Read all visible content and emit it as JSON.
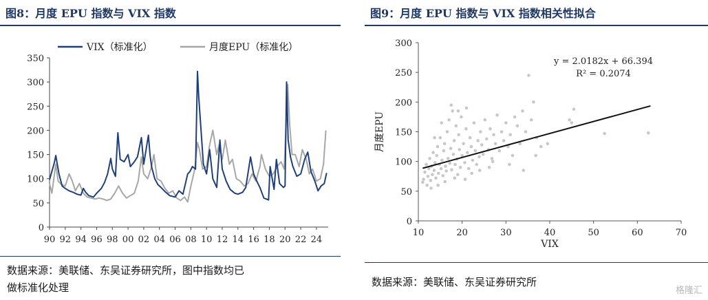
{
  "left": {
    "title": "图8：月度 EPU 指数与 VIX 指数",
    "source_line1": "数据来源：美联储、东吴证券研究所，图中指数均已",
    "source_line2": "做标准化处理"
  },
  "right": {
    "title": "图9：月度 EPU 指数与 VIX 指数相关性拟合",
    "source": "数据来源：美联储、东吴证券研究所"
  },
  "watermark": "格隆汇",
  "chart_data": [
    {
      "type": "line",
      "title": "",
      "xlabel": "",
      "ylabel": "",
      "ylim": [
        0,
        350
      ],
      "yticks": [
        0,
        50,
        100,
        150,
        200,
        250,
        300,
        350
      ],
      "xlim": [
        1990,
        2025.5
      ],
      "xtick_labels": [
        "90",
        "92",
        "94",
        "96",
        "98",
        "00",
        "02",
        "04",
        "06",
        "08",
        "10",
        "12",
        "14",
        "16",
        "18",
        "20",
        "22",
        "24"
      ],
      "legend": "top-left",
      "series": [
        {
          "name": "VIX（标准化）",
          "color": "#1f3f7a",
          "points": [
            [
              1990.0,
              98
            ],
            [
              1990.6,
              132
            ],
            [
              1990.8,
              148
            ],
            [
              1991.2,
              110
            ],
            [
              1991.6,
              85
            ],
            [
              1992.0,
              80
            ],
            [
              1992.5,
              75
            ],
            [
              1993.0,
              72
            ],
            [
              1993.5,
              68
            ],
            [
              1994.0,
              66
            ],
            [
              1994.3,
              80
            ],
            [
              1994.6,
              72
            ],
            [
              1995.0,
              65
            ],
            [
              1995.6,
              62
            ],
            [
              1996.0,
              70
            ],
            [
              1996.6,
              80
            ],
            [
              1997.0,
              92
            ],
            [
              1997.4,
              110
            ],
            [
              1997.8,
              142
            ],
            [
              1998.0,
              120
            ],
            [
              1998.4,
              105
            ],
            [
              1998.7,
              195
            ],
            [
              1999.0,
              140
            ],
            [
              1999.5,
              135
            ],
            [
              2000.0,
              150
            ],
            [
              2000.3,
              125
            ],
            [
              2000.8,
              135
            ],
            [
              2001.2,
              145
            ],
            [
              2001.7,
              185
            ],
            [
              2002.0,
              130
            ],
            [
              2002.6,
              190
            ],
            [
              2002.8,
              150
            ],
            [
              2003.0,
              125
            ],
            [
              2003.4,
              100
            ],
            [
              2003.8,
              88
            ],
            [
              2004.2,
              82
            ],
            [
              2004.8,
              72
            ],
            [
              2005.3,
              65
            ],
            [
              2006.0,
              62
            ],
            [
              2006.5,
              75
            ],
            [
              2007.0,
              68
            ],
            [
              2007.6,
              110
            ],
            [
              2007.9,
              115
            ],
            [
              2008.2,
              125
            ],
            [
              2008.6,
              120
            ],
            [
              2008.85,
              322
            ],
            [
              2009.0,
              270
            ],
            [
              2009.3,
              200
            ],
            [
              2009.6,
              130
            ],
            [
              2010.0,
              110
            ],
            [
              2010.4,
              160
            ],
            [
              2010.8,
              100
            ],
            [
              2011.3,
              82
            ],
            [
              2011.7,
              180
            ],
            [
              2012.0,
              120
            ],
            [
              2012.5,
              95
            ],
            [
              2013.0,
              78
            ],
            [
              2013.6,
              70
            ],
            [
              2014.0,
              68
            ],
            [
              2014.6,
              72
            ],
            [
              2015.0,
              82
            ],
            [
              2015.6,
              145
            ],
            [
              2016.0,
              110
            ],
            [
              2016.4,
              95
            ],
            [
              2016.8,
              82
            ],
            [
              2017.3,
              60
            ],
            [
              2017.9,
              56
            ],
            [
              2018.1,
              125
            ],
            [
              2018.6,
              78
            ],
            [
              2018.9,
              140
            ],
            [
              2019.3,
              90
            ],
            [
              2019.8,
              82
            ],
            [
              2020.0,
              85
            ],
            [
              2020.2,
              300
            ],
            [
              2020.4,
              180
            ],
            [
              2020.7,
              145
            ],
            [
              2021.0,
              125
            ],
            [
              2021.5,
              105
            ],
            [
              2022.0,
              110
            ],
            [
              2022.5,
              140
            ],
            [
              2022.9,
              155
            ],
            [
              2023.3,
              115
            ],
            [
              2023.8,
              95
            ],
            [
              2024.2,
              75
            ],
            [
              2024.6,
              85
            ],
            [
              2025.0,
              90
            ],
            [
              2025.3,
              112
            ]
          ]
        },
        {
          "name": "月度EPU（标准化）",
          "color": "#a6a6a6",
          "points": [
            [
              1990.0,
              90
            ],
            [
              1990.3,
              70
            ],
            [
              1990.8,
              130
            ],
            [
              1991.1,
              95
            ],
            [
              1991.5,
              88
            ],
            [
              1992.0,
              85
            ],
            [
              1992.5,
              110
            ],
            [
              1992.9,
              95
            ],
            [
              1993.3,
              75
            ],
            [
              1993.8,
              90
            ],
            [
              1994.3,
              70
            ],
            [
              1994.8,
              62
            ],
            [
              1995.3,
              60
            ],
            [
              1995.8,
              58
            ],
            [
              1996.3,
              60
            ],
            [
              1996.8,
              58
            ],
            [
              1997.3,
              55
            ],
            [
              1997.8,
              58
            ],
            [
              1998.3,
              70
            ],
            [
              1998.8,
              85
            ],
            [
              1999.3,
              70
            ],
            [
              1999.8,
              60
            ],
            [
              2000.3,
              65
            ],
            [
              2000.8,
              70
            ],
            [
              2001.3,
              95
            ],
            [
              2001.7,
              145
            ],
            [
              2002.0,
              110
            ],
            [
              2002.5,
              100
            ],
            [
              2003.0,
              125
            ],
            [
              2003.3,
              150
            ],
            [
              2003.7,
              100
            ],
            [
              2004.2,
              95
            ],
            [
              2004.7,
              80
            ],
            [
              2005.2,
              70
            ],
            [
              2005.7,
              75
            ],
            [
              2006.2,
              60
            ],
            [
              2006.7,
              55
            ],
            [
              2007.2,
              62
            ],
            [
              2007.6,
              52
            ],
            [
              2008.0,
              85
            ],
            [
              2008.5,
              120
            ],
            [
              2008.85,
              175
            ],
            [
              2009.1,
              160
            ],
            [
              2009.5,
              120
            ],
            [
              2010.0,
              125
            ],
            [
              2010.4,
              170
            ],
            [
              2010.8,
              200
            ],
            [
              2011.3,
              150
            ],
            [
              2011.6,
              170
            ],
            [
              2012.0,
              140
            ],
            [
              2012.4,
              180
            ],
            [
              2012.9,
              130
            ],
            [
              2013.3,
              140
            ],
            [
              2013.8,
              100
            ],
            [
              2014.3,
              95
            ],
            [
              2014.8,
              85
            ],
            [
              2015.3,
              90
            ],
            [
              2015.8,
              110
            ],
            [
              2016.3,
              95
            ],
            [
              2016.8,
              125
            ],
            [
              2017.0,
              150
            ],
            [
              2017.5,
              120
            ],
            [
              2018.0,
              105
            ],
            [
              2018.5,
              110
            ],
            [
              2019.0,
              125
            ],
            [
              2019.5,
              135
            ],
            [
              2019.9,
              120
            ],
            [
              2020.2,
              240
            ],
            [
              2020.35,
              295
            ],
            [
              2020.6,
              210
            ],
            [
              2020.9,
              150
            ],
            [
              2021.3,
              150
            ],
            [
              2021.8,
              125
            ],
            [
              2022.2,
              160
            ],
            [
              2022.7,
              140
            ],
            [
              2023.1,
              110
            ],
            [
              2023.5,
              120
            ],
            [
              2024.0,
              95
            ],
            [
              2024.5,
              100
            ],
            [
              2024.9,
              130
            ],
            [
              2025.2,
              200
            ]
          ]
        }
      ]
    },
    {
      "type": "scatter",
      "title": "",
      "xlabel": "VIX",
      "ylabel": "月度EPU",
      "xlim": [
        10,
        70
      ],
      "ylim": [
        0,
        300
      ],
      "xticks": [
        10,
        20,
        30,
        40,
        50,
        60,
        70
      ],
      "yticks": [
        0,
        50,
        100,
        150,
        200,
        250,
        300
      ],
      "grid": false,
      "points_color": "#c8c8c8",
      "trendline": {
        "slope": 2.0182,
        "intercept": 66.394,
        "x_range": [
          11,
          63
        ],
        "color": "#111111"
      },
      "annotation_equation": "y = 2.0182x + 66.394",
      "annotation_r2": "R² = 0.2074",
      "points": [
        [
          11.2,
          70
        ],
        [
          11.5,
          82
        ],
        [
          11.8,
          95
        ],
        [
          12.0,
          60
        ],
        [
          12.2,
          75
        ],
        [
          12.4,
          88
        ],
        [
          12.6,
          105
        ],
        [
          12.8,
          68
        ],
        [
          13.0,
          92
        ],
        [
          13.2,
          78
        ],
        [
          13.4,
          115
        ],
        [
          13.6,
          85
        ],
        [
          13.8,
          98
        ],
        [
          14.0,
          72
        ],
        [
          14.2,
          110
        ],
        [
          14.4,
          125
        ],
        [
          14.6,
          80
        ],
        [
          14.8,
          95
        ],
        [
          15.0,
          140
        ],
        [
          15.2,
          88
        ],
        [
          15.4,
          102
        ],
        [
          15.6,
          76
        ],
        [
          15.8,
          118
        ],
        [
          16.0,
          130
        ],
        [
          16.2,
          92
        ],
        [
          16.4,
          84
        ],
        [
          16.6,
          150
        ],
        [
          16.8,
          105
        ],
        [
          17.0,
          170
        ],
        [
          17.2,
          97
        ],
        [
          17.4,
          122
        ],
        [
          17.6,
          86
        ],
        [
          17.8,
          185
        ],
        [
          18.0,
          112
        ],
        [
          18.2,
          135
        ],
        [
          18.4,
          95
        ],
        [
          18.6,
          160
        ],
        [
          18.8,
          104
        ],
        [
          19.0,
          78
        ],
        [
          19.2,
          145
        ],
        [
          19.4,
          120
        ],
        [
          19.6,
          90
        ],
        [
          19.8,
          175
        ],
        [
          20.0,
          110
        ],
        [
          20.3,
          130
        ],
        [
          20.6,
          98
        ],
        [
          20.9,
          155
        ],
        [
          21.2,
          115
        ],
        [
          21.5,
          88
        ],
        [
          21.8,
          140
        ],
        [
          22.1,
          125
        ],
        [
          22.4,
          102
        ],
        [
          22.7,
          165
        ],
        [
          23.0,
          118
        ],
        [
          23.3,
          95
        ],
        [
          23.6,
          135
        ],
        [
          23.9,
          108
        ],
        [
          24.2,
          150
        ],
        [
          24.5,
          128
        ],
        [
          24.8,
          112
        ],
        [
          25.2,
          170
        ],
        [
          25.6,
          138
        ],
        [
          26.0,
          120
        ],
        [
          26.4,
          155
        ],
        [
          26.8,
          105
        ],
        [
          27.2,
          145
        ],
        [
          27.6,
          130
        ],
        [
          28.0,
          178
        ],
        [
          28.5,
          118
        ],
        [
          29.0,
          150
        ],
        [
          29.5,
          135
        ],
        [
          30.0,
          165
        ],
        [
          30.5,
          125
        ],
        [
          31.0,
          145
        ],
        [
          31.5,
          110
        ],
        [
          32.0,
          175
        ],
        [
          32.6,
          160
        ],
        [
          33.2,
          130
        ],
        [
          33.8,
          185
        ],
        [
          34.5,
          150
        ],
        [
          35.2,
          245
        ],
        [
          35.8,
          170
        ],
        [
          36.3,
          200
        ],
        [
          37.0,
          140
        ],
        [
          38.0,
          125
        ],
        [
          39.5,
          130
        ],
        [
          44.5,
          170
        ],
        [
          45.0,
          165
        ],
        [
          45.5,
          188
        ],
        [
          52.5,
          147
        ],
        [
          62.5,
          148
        ],
        [
          11.0,
          65
        ],
        [
          12.9,
          55
        ],
        [
          14.5,
          60
        ],
        [
          16.1,
          66
        ],
        [
          18.3,
          72
        ],
        [
          20.7,
          70
        ],
        [
          22.2,
          80
        ],
        [
          24.0,
          85
        ],
        [
          26.2,
          90
        ],
        [
          13.7,
          140
        ],
        [
          15.3,
          165
        ],
        [
          17.5,
          195
        ],
        [
          19.1,
          185
        ],
        [
          21.0,
          190
        ],
        [
          27.0,
          100
        ],
        [
          30.8,
          95
        ],
        [
          34.0,
          85
        ],
        [
          36.8,
          110
        ]
      ]
    }
  ]
}
